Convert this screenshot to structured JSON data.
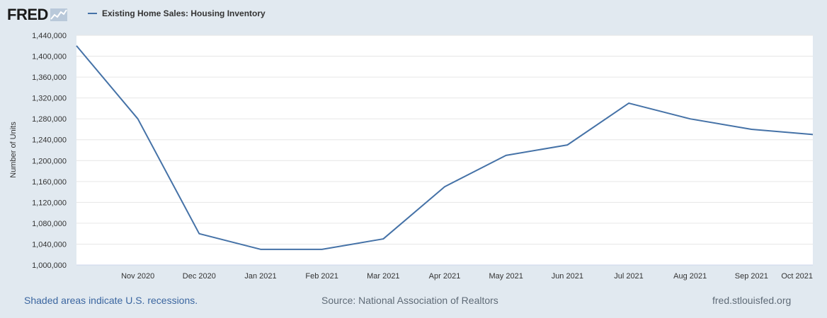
{
  "header": {
    "logo_text": "FRED",
    "legend_label": "Existing Home Sales: Housing Inventory",
    "series_color": "#4572a7"
  },
  "footer": {
    "recession_note": "Shaded areas indicate U.S. recessions.",
    "source": "Source: National Association of Realtors",
    "site": "fred.stlouisfed.org"
  },
  "chart_data": {
    "type": "line",
    "title": "",
    "ylabel": "Number of Units",
    "xlabel": "",
    "ylim": [
      1000000,
      1440000
    ],
    "yticks": [
      1000000,
      1040000,
      1080000,
      1120000,
      1160000,
      1200000,
      1240000,
      1280000,
      1320000,
      1360000,
      1400000,
      1440000
    ],
    "ytick_labels": [
      "1,000,000",
      "1,040,000",
      "1,080,000",
      "1,120,000",
      "1,160,000",
      "1,200,000",
      "1,240,000",
      "1,280,000",
      "1,320,000",
      "1,360,000",
      "1,400,000",
      "1,440,000"
    ],
    "x": [
      "2020-10-01",
      "2020-11-01",
      "2020-12-01",
      "2021-01-01",
      "2021-02-01",
      "2021-03-01",
      "2021-04-01",
      "2021-05-01",
      "2021-06-01",
      "2021-07-01",
      "2021-08-01",
      "2021-09-01",
      "2021-10-01"
    ],
    "xtick_labels": [
      "",
      "Nov 2020",
      "Dec 2020",
      "Jan 2021",
      "Feb 2021",
      "Mar 2021",
      "Apr 2021",
      "May 2021",
      "Jun 2021",
      "Jul 2021",
      "Aug 2021",
      "Sep 2021",
      "Oct 2021"
    ],
    "series": [
      {
        "name": "Existing Home Sales: Housing Inventory",
        "values": [
          1420000,
          1280000,
          1060000,
          1030000,
          1030000,
          1050000,
          1150000,
          1210000,
          1230000,
          1310000,
          1280000,
          1260000,
          1250000
        ]
      }
    ],
    "grid": true,
    "legend": "top-left"
  }
}
